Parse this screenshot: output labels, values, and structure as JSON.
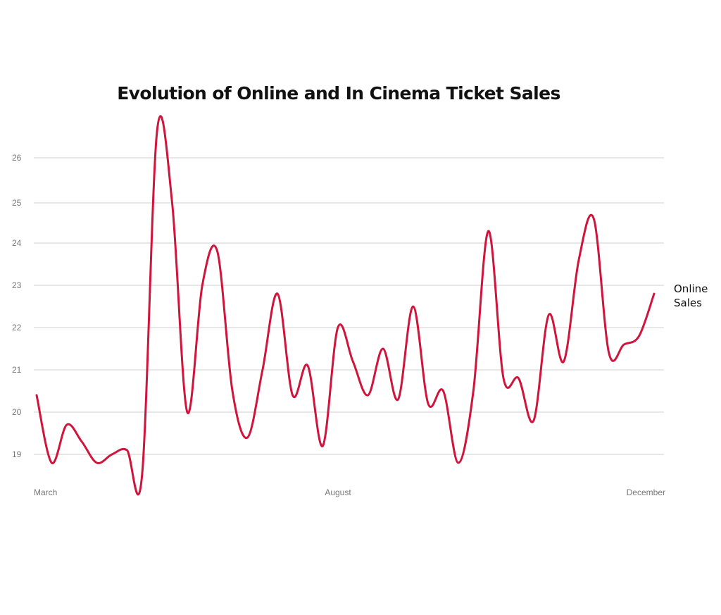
{
  "chart_data": {
    "type": "line",
    "title": "Evolution of Online and In Cinema Ticket Sales",
    "xlabel": "",
    "ylabel": "",
    "x_tick_labels": [
      "March",
      "August",
      "December"
    ],
    "y_ticks": [
      19,
      20,
      21,
      22,
      23,
      24,
      25,
      26
    ],
    "ylim": [
      18.5,
      26.6
    ],
    "grid": true,
    "legend": "right, inline label at end of line",
    "series": [
      {
        "name": "Online Sales",
        "color": "#d0143c",
        "values": [
          20.4,
          18.8,
          19.7,
          19.3,
          18.8,
          19.0,
          19.1,
          18.5,
          26.6,
          25.0,
          20.0,
          23.0,
          23.8,
          20.5,
          19.4,
          21.0,
          22.8,
          20.4,
          21.1,
          19.2,
          22.0,
          21.2,
          20.4,
          21.5,
          20.3,
          22.5,
          20.2,
          20.5,
          18.8,
          20.5,
          24.3,
          20.8,
          20.8,
          19.8,
          22.3,
          21.2,
          23.6,
          24.6,
          21.4,
          21.6,
          21.8,
          22.8
        ]
      }
    ]
  }
}
